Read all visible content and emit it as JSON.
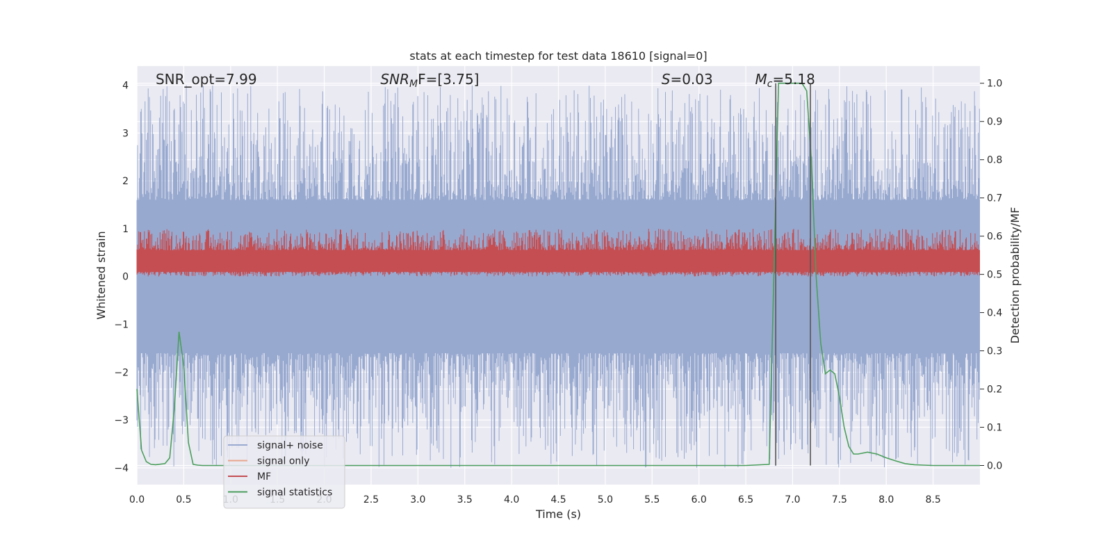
{
  "chart_data": {
    "type": "line",
    "title": "stats at each timestep for test data 18610 [signal=0]",
    "xlabel": "Time (s)",
    "ylabel": "Whitened strain",
    "ylabel_right": "Detection probability/MF",
    "xlim": [
      0,
      9
    ],
    "ylim": [
      -4.35,
      4.4
    ],
    "ylim_right": [
      -0.05,
      1.045
    ],
    "xticks": [
      "0.0",
      "0.5",
      "1.0",
      "1.5",
      "2.0",
      "2.5",
      "3.0",
      "3.5",
      "4.0",
      "4.5",
      "5.0",
      "5.5",
      "6.0",
      "6.5",
      "7.0",
      "7.5",
      "8.0",
      "8.5"
    ],
    "yticks": [
      "4",
      "3",
      "2",
      "1",
      "0",
      "−1",
      "−2",
      "−3",
      "−4"
    ],
    "yticks_right": [
      "1.0",
      "0.9",
      "0.8",
      "0.7",
      "0.6",
      "0.5",
      "0.4",
      "0.3",
      "0.2",
      "0.1",
      "0.0"
    ],
    "annotations": [
      {
        "text": "SNR_opt=7.99",
        "x": 0.2
      },
      {
        "math_base": "SNR",
        "math_sub": "M",
        "rest": "F=[3.75]",
        "x": 2.6
      },
      {
        "math_base": "S",
        "rest": "=0.03",
        "x": 5.6
      },
      {
        "math_base": "M",
        "math_sub": "c",
        "rest": "=5.18",
        "x": 6.6
      }
    ],
    "vlines": [
      6.82,
      7.19
    ],
    "legend": {
      "position": "lower-left",
      "entries": [
        "signal+ noise",
        "signal only",
        "MF",
        "signal statistics"
      ]
    },
    "grid": true,
    "series": [
      {
        "name": "signal+ noise",
        "axis": "left",
        "color": "#98a9d0",
        "kind": "noise",
        "fill_band": [
          -1.6,
          1.6
        ],
        "peak_range": [
          -4.0,
          4.0
        ]
      },
      {
        "name": "signal only",
        "axis": "left",
        "color": "#e8a58b",
        "kind": "empty"
      },
      {
        "name": "MF",
        "axis": "left",
        "color": "#c44e52",
        "kind": "noise",
        "fill_band": [
          0.1,
          0.55
        ],
        "peak_range": [
          0.0,
          1.0
        ]
      },
      {
        "name": "signal statistics",
        "axis": "right",
        "color": "#4a9e5c",
        "x": [
          0.0,
          0.05,
          0.1,
          0.15,
          0.2,
          0.3,
          0.35,
          0.4,
          0.45,
          0.5,
          0.55,
          0.6,
          0.65,
          0.7,
          1.0,
          2.0,
          3.0,
          4.0,
          5.0,
          6.0,
          6.5,
          6.75,
          6.8,
          6.85,
          6.9,
          7.0,
          7.1,
          7.15,
          7.2,
          7.25,
          7.3,
          7.35,
          7.4,
          7.45,
          7.5,
          7.55,
          7.6,
          7.65,
          7.7,
          7.8,
          7.9,
          8.0,
          8.1,
          8.2,
          8.3,
          8.4,
          8.5,
          8.7,
          9.0
        ],
        "y": [
          0.2,
          0.04,
          0.01,
          0.003,
          0.002,
          0.005,
          0.02,
          0.15,
          0.35,
          0.26,
          0.06,
          0.003,
          0.001,
          0.0,
          0.0,
          0.0,
          0.0,
          0.0,
          0.0,
          0.0,
          0.0,
          0.003,
          0.5,
          1.0,
          1.0,
          1.0,
          1.0,
          0.98,
          0.8,
          0.5,
          0.32,
          0.24,
          0.25,
          0.24,
          0.18,
          0.1,
          0.05,
          0.03,
          0.03,
          0.035,
          0.03,
          0.02,
          0.012,
          0.005,
          0.002,
          0.001,
          0.0,
          0.0,
          0.0
        ]
      }
    ]
  }
}
